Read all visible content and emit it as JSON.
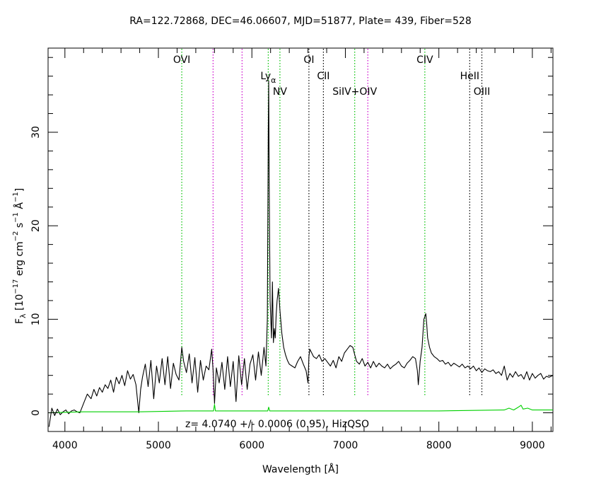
{
  "chart_data": {
    "type": "line",
    "title": "RA=122.72868, DEC=46.06607, MJD=51877, Plate=  439, Fiber=528",
    "xlabel": "Wavelength [Å]",
    "ylabel": "F_λ [10^-17 erg cm^-2 s^-1 Å^-1]",
    "ylabel_parts": {
      "f": "F",
      "f_sub": "λ",
      "p1": " [10",
      "e1": "−17",
      "p2": " erg cm",
      "e2": "−2",
      "p3": " s",
      "e3": "−1",
      "p4": " Å",
      "e4": "−1",
      "p5": "]"
    },
    "xlim": [
      3820,
      9220
    ],
    "ylim": [
      -2,
      39
    ],
    "xticks": [
      4000,
      5000,
      6000,
      7000,
      8000,
      9000
    ],
    "yticks": [
      0,
      10,
      20,
      30
    ],
    "annotation": "z=  4.0740 +/-  0.0006 (0.95), HizQSO",
    "series": [
      {
        "color": "#000000",
        "x": [
          3830,
          3860,
          3890,
          3920,
          3950,
          3980,
          4010,
          4040,
          4070,
          4100,
          4130,
          4160,
          4200,
          4240,
          4280,
          4310,
          4340,
          4370,
          4400,
          4430,
          4460,
          4490,
          4520,
          4550,
          4580,
          4610,
          4640,
          4670,
          4700,
          4730,
          4760,
          4790,
          4810,
          4830,
          4860,
          4890,
          4920,
          4950,
          4980,
          5010,
          5040,
          5070,
          5100,
          5130,
          5160,
          5190,
          5220,
          5250,
          5270,
          5300,
          5330,
          5360,
          5390,
          5420,
          5450,
          5480,
          5510,
          5540,
          5570,
          5585,
          5600,
          5620,
          5650,
          5680,
          5710,
          5740,
          5770,
          5800,
          5830,
          5860,
          5890,
          5920,
          5950,
          5980,
          6010,
          6040,
          6070,
          6100,
          6130,
          6150,
          6165,
          6175,
          6180,
          6185,
          6195,
          6210,
          6220,
          6230,
          6240,
          6250,
          6260,
          6270,
          6285,
          6300,
          6320,
          6340,
          6360,
          6380,
          6400,
          6430,
          6460,
          6490,
          6520,
          6550,
          6580,
          6600,
          6610,
          6620,
          6640,
          6660,
          6690,
          6720,
          6750,
          6780,
          6810,
          6840,
          6870,
          6900,
          6930,
          6960,
          6990,
          7020,
          7050,
          7080,
          7100,
          7120,
          7150,
          7180,
          7210,
          7240,
          7270,
          7300,
          7330,
          7360,
          7390,
          7420,
          7450,
          7480,
          7510,
          7540,
          7570,
          7600,
          7630,
          7660,
          7690,
          7720,
          7750,
          7770,
          7780,
          7790,
          7800,
          7820,
          7840,
          7860,
          7870,
          7880,
          7900,
          7920,
          7950,
          7980,
          8010,
          8040,
          8070,
          8100,
          8130,
          8160,
          8190,
          8220,
          8250,
          8280,
          8310,
          8340,
          8370,
          8400,
          8430,
          8460,
          8490,
          8520,
          8550,
          8580,
          8610,
          8640,
          8670,
          8700,
          8730,
          8760,
          8790,
          8820,
          8850,
          8880,
          8910,
          8940,
          8970,
          9000,
          9030,
          9060,
          9090,
          9120,
          9150,
          9180,
          9220
        ],
        "y": [
          -1.5,
          0.5,
          -0.3,
          0.4,
          -0.2,
          0.1,
          0.3,
          -0.1,
          0.2,
          0.3,
          0.1,
          0.0,
          1.0,
          2.0,
          1.5,
          2.5,
          1.8,
          2.7,
          2.2,
          3.0,
          2.6,
          3.5,
          2.2,
          3.8,
          3.1,
          4.0,
          2.9,
          4.5,
          3.6,
          4.1,
          3.0,
          0.0,
          2.5,
          3.8,
          5.2,
          2.8,
          5.6,
          1.5,
          5.0,
          3.2,
          5.8,
          3.0,
          6.0,
          2.6,
          5.3,
          4.1,
          3.5,
          7.0,
          5.5,
          4.3,
          6.3,
          3.2,
          5.9,
          2.2,
          5.6,
          3.5,
          5.0,
          4.6,
          6.8,
          4.5,
          1.0,
          4.8,
          3.2,
          5.4,
          2.5,
          6.0,
          2.8,
          5.5,
          1.2,
          6.1,
          3.0,
          5.8,
          2.5,
          5.2,
          6.2,
          3.5,
          6.5,
          4.0,
          7.0,
          5.0,
          10.0,
          30.0,
          35.5,
          25.0,
          12.0,
          8.0,
          14.0,
          7.5,
          9.0,
          8.0,
          10.5,
          12.0,
          13.3,
          11.0,
          8.5,
          7.0,
          6.2,
          5.6,
          5.2,
          5.0,
          4.8,
          5.5,
          6.0,
          5.2,
          4.5,
          3.2,
          6.0,
          6.8,
          6.4,
          6.0,
          5.8,
          6.2,
          5.5,
          5.8,
          5.4,
          5.0,
          5.6,
          4.8,
          6.0,
          5.5,
          6.4,
          6.8,
          7.2,
          7.0,
          6.2,
          5.5,
          5.2,
          5.8,
          5.0,
          5.4,
          4.8,
          5.5,
          4.9,
          5.3,
          5.0,
          4.8,
          5.2,
          4.7,
          5.0,
          5.2,
          5.5,
          5.0,
          4.8,
          5.3,
          5.6,
          6.0,
          5.8,
          4.5,
          3.0,
          4.2,
          5.5,
          7.0,
          10.0,
          10.6,
          9.5,
          8.0,
          7.0,
          6.4,
          6.0,
          5.8,
          5.5,
          5.6,
          5.2,
          5.4,
          5.0,
          5.3,
          5.1,
          4.9,
          5.2,
          4.8,
          5.0,
          4.7,
          5.0,
          4.5,
          4.8,
          4.3,
          4.7,
          4.5,
          4.4,
          4.6,
          4.2,
          4.4,
          4.0,
          5.0,
          3.5,
          4.2,
          3.8,
          4.4,
          3.9,
          4.1,
          3.6,
          4.4,
          3.5,
          4.2,
          3.7,
          4.0,
          4.2,
          3.6,
          3.9,
          3.8,
          4.0
        ]
      },
      {
        "color": "#00d000",
        "x": [
          3830,
          4200,
          4800,
          5300,
          5590,
          5600,
          5610,
          6000,
          6170,
          6180,
          6190,
          7000,
          8000,
          8700,
          8750,
          8800,
          8850,
          8880,
          8900,
          8950,
          9000,
          9220
        ],
        "y": [
          0.0,
          0.1,
          0.1,
          0.2,
          0.2,
          0.9,
          0.2,
          0.2,
          0.2,
          0.6,
          0.2,
          0.2,
          0.2,
          0.3,
          0.5,
          0.3,
          0.6,
          0.8,
          0.4,
          0.5,
          0.3,
          0.3
        ]
      }
    ],
    "lines": [
      {
        "x": 5250,
        "color": "#00c000",
        "label": "OVI",
        "row": 0
      },
      {
        "x": 5585,
        "color": "#cc00cc"
      },
      {
        "x": 5895,
        "color": "#cc00cc"
      },
      {
        "x": 6175,
        "color": "#00c000",
        "label_main": "Ly",
        "label_sub": "α",
        "row": 1
      },
      {
        "x": 6300,
        "color": "#00c000",
        "label": "NV",
        "row": 2
      },
      {
        "x": 6610,
        "color": "#000000",
        "label": "OI",
        "row": 0
      },
      {
        "x": 6765,
        "color": "#000000",
        "label": "CII",
        "row": 1
      },
      {
        "x": 7100,
        "color": "#00c000",
        "label": "SiIV+OIV",
        "row": 2
      },
      {
        "x": 7240,
        "color": "#cc00cc"
      },
      {
        "x": 7850,
        "color": "#00c000",
        "label": "CIV",
        "row": 0
      },
      {
        "x": 8330,
        "color": "#000000",
        "label": "HeII",
        "row": 1
      },
      {
        "x": 8460,
        "color": "#000000",
        "label": "OIII",
        "row": 2
      }
    ]
  }
}
